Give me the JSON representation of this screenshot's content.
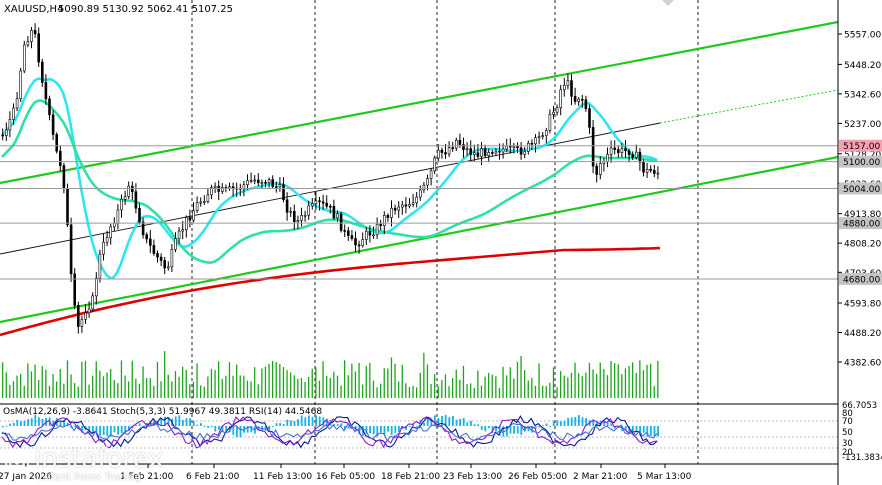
{
  "header": {
    "symbol_label": "XAUUSD,H4",
    "ohlc": "5090.89 5130.92 5062.41 5107.25"
  },
  "price_axis": {
    "ticks": [
      "5557.00",
      "5448.20",
      "5342.60",
      "5237.00",
      "5128.20",
      "5022.60",
      "4913.80",
      "4808.20",
      "4703.60",
      "4593.80",
      "4488.20",
      "4382.60"
    ],
    "markers": [
      {
        "label": "5157.00",
        "color": "#f7a1b0"
      },
      {
        "label": "5100.00",
        "color": "#c4c4c4"
      },
      {
        "label": "5004.00",
        "color": "#c4c4c4"
      },
      {
        "label": "4880.00",
        "color": "#c4c4c4"
      },
      {
        "label": "4680.00",
        "color": "#c4c4c4"
      }
    ]
  },
  "time_axis": {
    "labels": [
      "27 Jan 2026",
      "1 Feb 21:00",
      "6 Feb 21:00",
      "11 Feb 13:00",
      "16 Feb 05:00",
      "18 Feb 21:00",
      "23 Feb 13:00",
      "26 Feb 05:00",
      "2 Mar 21:00",
      "5 Mar 13:00"
    ]
  },
  "indicators": {
    "label": "OsMA(12,26,9) -3.8641   Stoch(5,3,3) 51.9967 49.3811   RSI(14) 44.5468",
    "axis": [
      "66.7053",
      "80",
      "70",
      "50",
      "30",
      "20",
      "-131.3834"
    ]
  },
  "watermark": {
    "name": "instaforex",
    "tagline": "Instant Forex Trading"
  },
  "colors": {
    "candle": "#000000",
    "ema_fast": "#2fe6f0",
    "ema_mid": "#2fe0a8",
    "ema_slow": "#e00000",
    "channel_green": "#22c91d",
    "volume": "#1ca61c",
    "osma": "#19b2e4",
    "stoch_main": "#0a1a8c",
    "stoch_signal": "#8c1ad0",
    "rsi": "#4a6ed0"
  },
  "chart_data": {
    "type": "candlestick",
    "symbol": "XAUUSD",
    "timeframe": "H4",
    "open": 5090.89,
    "high": 5130.92,
    "low": 5062.41,
    "close": 5107.25,
    "price_range": [
      4382.6,
      5557.0
    ],
    "support_resistance_levels": [
      5157.0,
      5100.0,
      5004.0,
      4880.0,
      4680.0
    ],
    "indicators": {
      "osma_12_26_9": -3.8641,
      "stoch_5_3_3": [
        51.9967,
        49.3811
      ],
      "rsi_14": 44.5468
    },
    "indicator_scale": [
      -131.3834,
      66.7053
    ]
  }
}
